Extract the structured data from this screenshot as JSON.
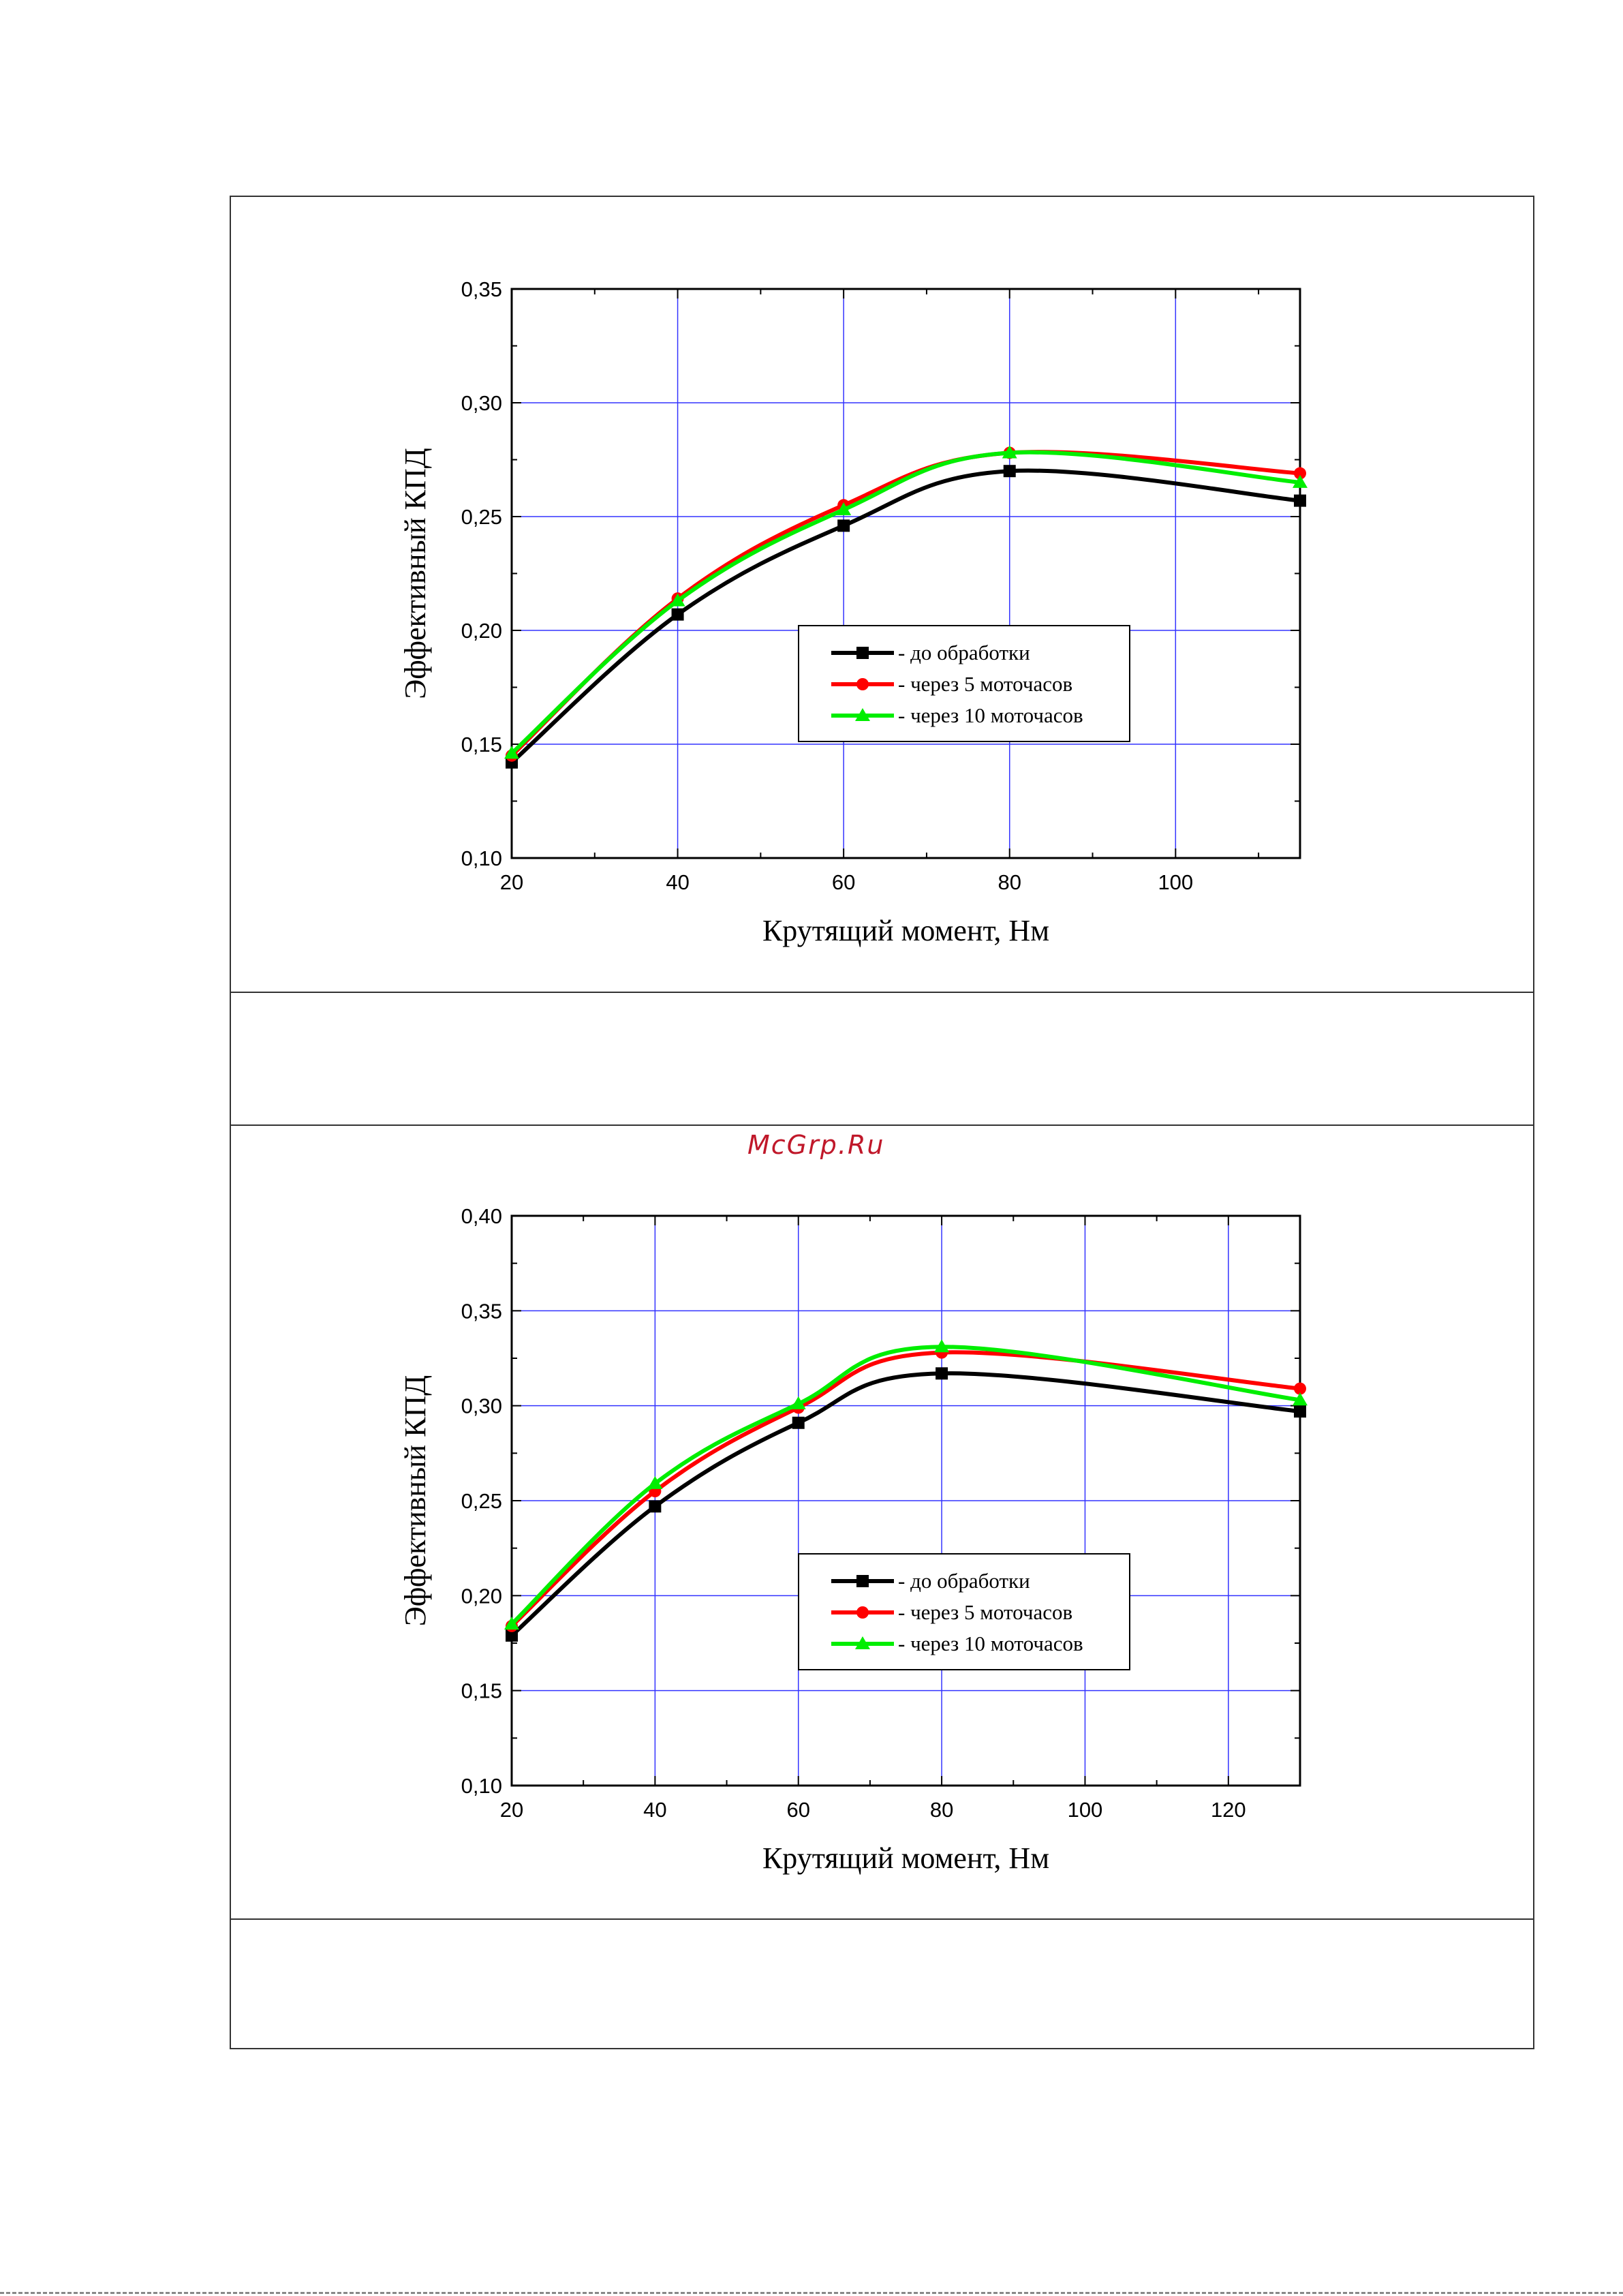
{
  "watermark": "McGrp.Ru",
  "chart_data": [
    {
      "type": "line",
      "xlabel": "Крутящий момент, Нм",
      "ylabel": "Эффективный КПД",
      "xlim": [
        20,
        115
      ],
      "ylim": [
        0.1,
        0.35
      ],
      "x_ticks": [
        "20",
        "40",
        "60",
        "80",
        "100"
      ],
      "y_ticks": [
        "0,10",
        "0,15",
        "0,20",
        "0,25",
        "0,30",
        "0,35"
      ],
      "grid": true,
      "legend_position": "center-right",
      "series": [
        {
          "name": "- до обработки",
          "color": "#000000",
          "marker": "square",
          "x": [
            20,
            40,
            60,
            80,
            115
          ],
          "values": [
            0.142,
            0.207,
            0.246,
            0.27,
            0.257
          ]
        },
        {
          "name": "- через 5 моточасов",
          "color": "#ff0000",
          "marker": "circle",
          "x": [
            20,
            40,
            60,
            80,
            115
          ],
          "values": [
            0.145,
            0.214,
            0.255,
            0.278,
            0.269
          ]
        },
        {
          "name": "- через 10 моточасов",
          "color": "#00ee00",
          "marker": "triangle",
          "x": [
            20,
            40,
            60,
            80,
            115
          ],
          "values": [
            0.146,
            0.213,
            0.253,
            0.278,
            0.265
          ]
        }
      ]
    },
    {
      "type": "line",
      "xlabel": "Крутящий момент, Нм",
      "ylabel": "Эффективный КПД",
      "xlim": [
        20,
        130
      ],
      "ylim": [
        0.1,
        0.4
      ],
      "x_ticks": [
        "20",
        "40",
        "60",
        "80",
        "100",
        "120"
      ],
      "y_ticks": [
        "0,10",
        "0,15",
        "0,20",
        "0,25",
        "0,30",
        "0,35",
        "0,40"
      ],
      "grid": true,
      "legend_position": "center-right",
      "series": [
        {
          "name": "- до обработки",
          "color": "#000000",
          "marker": "square",
          "x": [
            20,
            40,
            60,
            80,
            130
          ],
          "values": [
            0.179,
            0.247,
            0.291,
            0.317,
            0.297
          ]
        },
        {
          "name": "- через 5 моточасов",
          "color": "#ff0000",
          "marker": "circle",
          "x": [
            20,
            40,
            60,
            80,
            130
          ],
          "values": [
            0.184,
            0.255,
            0.299,
            0.328,
            0.309
          ]
        },
        {
          "name": "- через 10 моточасов",
          "color": "#00ee00",
          "marker": "triangle",
          "x": [
            20,
            40,
            60,
            80,
            130
          ],
          "values": [
            0.185,
            0.259,
            0.301,
            0.331,
            0.303
          ]
        }
      ]
    }
  ]
}
